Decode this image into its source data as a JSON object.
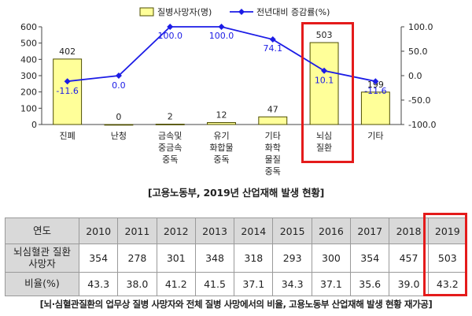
{
  "chart_data": {
    "type": "bar+line",
    "categories": [
      [
        "진폐"
      ],
      [
        "난청"
      ],
      [
        "금속및",
        "중금속",
        "중독"
      ],
      [
        "유기",
        "화합물",
        "중독"
      ],
      [
        "기타",
        "화학",
        "물질",
        "중독"
      ],
      [
        "뇌심",
        "질환"
      ],
      [
        "기타"
      ]
    ],
    "series": [
      {
        "name": "질병사망자(명)",
        "type": "bar",
        "axis": "left",
        "values": [
          402,
          0,
          2,
          12,
          47,
          503,
          199
        ],
        "color": "#ffff99",
        "stroke": "#4d4d00"
      },
      {
        "name": "전년대비 증감률(%)",
        "type": "line",
        "axis": "right",
        "values": [
          -11.6,
          0.0,
          100.0,
          100.0,
          74.1,
          10.1,
          -11.6
        ],
        "color": "#1c1ce6"
      }
    ],
    "data_labels": {
      "bar": [
        "402",
        "0",
        "2",
        "12",
        "47",
        "503",
        "199"
      ],
      "line": [
        "-11.6",
        "0.0",
        "100.0",
        "100.0",
        "74.1",
        "10.1",
        "-11.6"
      ]
    },
    "y_left": {
      "range": [
        0,
        600
      ],
      "ticks": [
        "0",
        "100",
        "200",
        "300",
        "400",
        "500",
        "600"
      ]
    },
    "y_right": {
      "range": [
        -100,
        100
      ],
      "ticks": [
        "-100.0",
        "-50.0",
        "0.0",
        "50.0",
        "100.0"
      ]
    },
    "legend_position": "top",
    "grid": false,
    "highlight_category": "뇌심질환"
  },
  "captions": {
    "chart": "[고용노동부, 2019년 산업재해 발생 현황]",
    "table": "[뇌·심혈관질환의 업무상 질병 사망자와 전체 질병 사망에서의 비율, 고용노동부 산업재해 발생 현황 재가공]"
  },
  "table": {
    "corner": "연도",
    "years": [
      "2010",
      "2011",
      "2012",
      "2013",
      "2014",
      "2015",
      "2016",
      "2017",
      "2018",
      "2019"
    ],
    "rows": [
      {
        "label_lines": [
          "뇌심혈관 질환",
          "사망자"
        ],
        "values": [
          "354",
          "278",
          "301",
          "348",
          "318",
          "293",
          "300",
          "354",
          "457",
          "503"
        ]
      },
      {
        "label_lines": [
          "비율(%)"
        ],
        "values": [
          "43.3",
          "38.0",
          "41.2",
          "41.5",
          "37.1",
          "34.3",
          "37.1",
          "35.6",
          "39.0",
          "43.2"
        ]
      }
    ],
    "highlight_year": "2019"
  },
  "colors": {
    "highlight": "#e41b1b",
    "bar_fill": "#ffff99",
    "line": "#1c1ce6",
    "table_header": "#d9d9d9"
  }
}
